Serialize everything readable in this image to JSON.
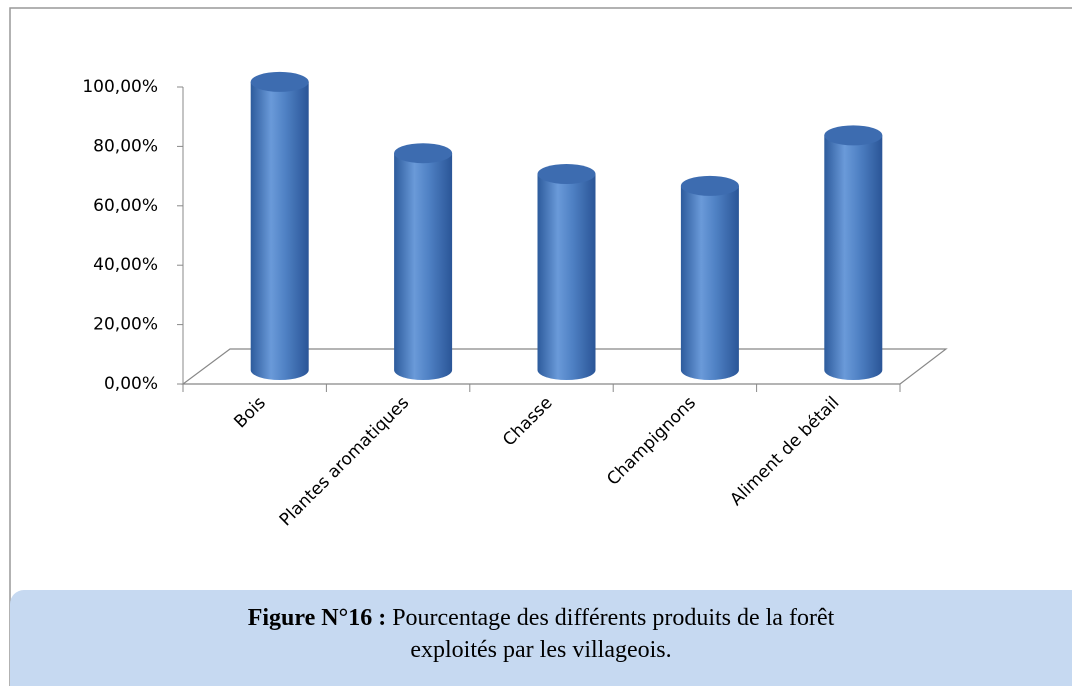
{
  "chart_data": {
    "type": "bar",
    "categories": [
      "Bois",
      "Plantes aromatiques",
      "Chasse",
      "Champignons",
      "Aliment de bétail"
    ],
    "values": [
      97,
      73,
      66,
      62,
      79
    ],
    "color": "#4f81bd",
    "ylim": [
      0,
      100
    ],
    "yticks": [
      {
        "value": 0,
        "label": "0,00%"
      },
      {
        "value": 20,
        "label": "20,00%"
      },
      {
        "value": 40,
        "label": "40,00%"
      },
      {
        "value": 60,
        "label": "60,00%"
      },
      {
        "value": 80,
        "label": "80,00%"
      },
      {
        "value": 100,
        "label": "100,00%"
      }
    ],
    "grid": false
  },
  "caption": {
    "label": "Figure N°16 :",
    "line1": "Pourcentage des différents produits de la forêt",
    "line2": "exploités  par les villageois."
  }
}
